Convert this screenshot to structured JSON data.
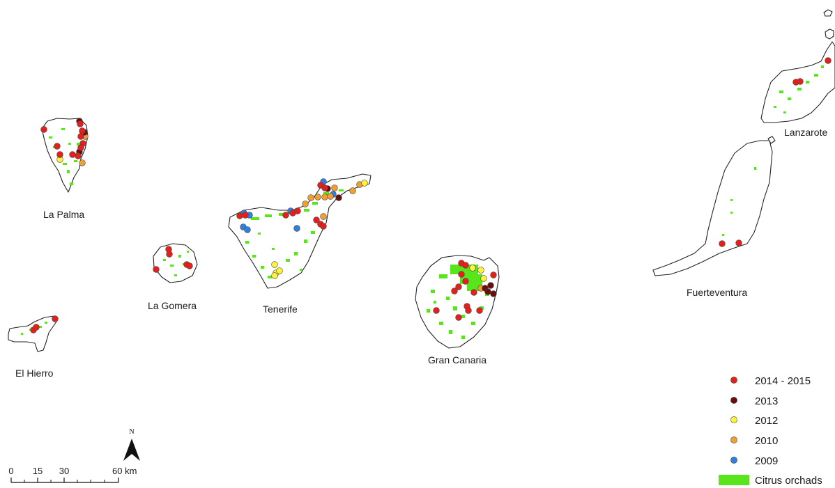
{
  "islands": [
    {
      "id": "la-palma",
      "name": "La Palma"
    },
    {
      "id": "el-hierro",
      "name": "El Hierro"
    },
    {
      "id": "la-gomera",
      "name": "La Gomera"
    },
    {
      "id": "tenerife",
      "name": "Tenerife"
    },
    {
      "id": "gran-canaria",
      "name": "Gran Canaria"
    },
    {
      "id": "fuerteventura",
      "name": "Fuerteventura"
    },
    {
      "id": "lanzarote",
      "name": "Lanzarote"
    }
  ],
  "legend": {
    "items": [
      {
        "label": "2014 - 2015",
        "color": "#e3201b",
        "kind": "dot"
      },
      {
        "label": "2013",
        "color": "#6b0d0d",
        "kind": "dot"
      },
      {
        "label": "2012",
        "color": "#fff23a",
        "kind": "dot"
      },
      {
        "label": "2010",
        "color": "#f0a030",
        "kind": "dot"
      },
      {
        "label": "2009",
        "color": "#2f7fe0",
        "kind": "dot"
      },
      {
        "label": "Citrus orchads",
        "color": "#58e51c",
        "kind": "swatch"
      }
    ]
  },
  "scale_bar": {
    "ticks": [
      "0",
      "15",
      "30",
      "60 km"
    ]
  },
  "north_arrow": {
    "label": "N"
  },
  "colors": {
    "orchard": "#58e51c",
    "outline": "#222222"
  }
}
